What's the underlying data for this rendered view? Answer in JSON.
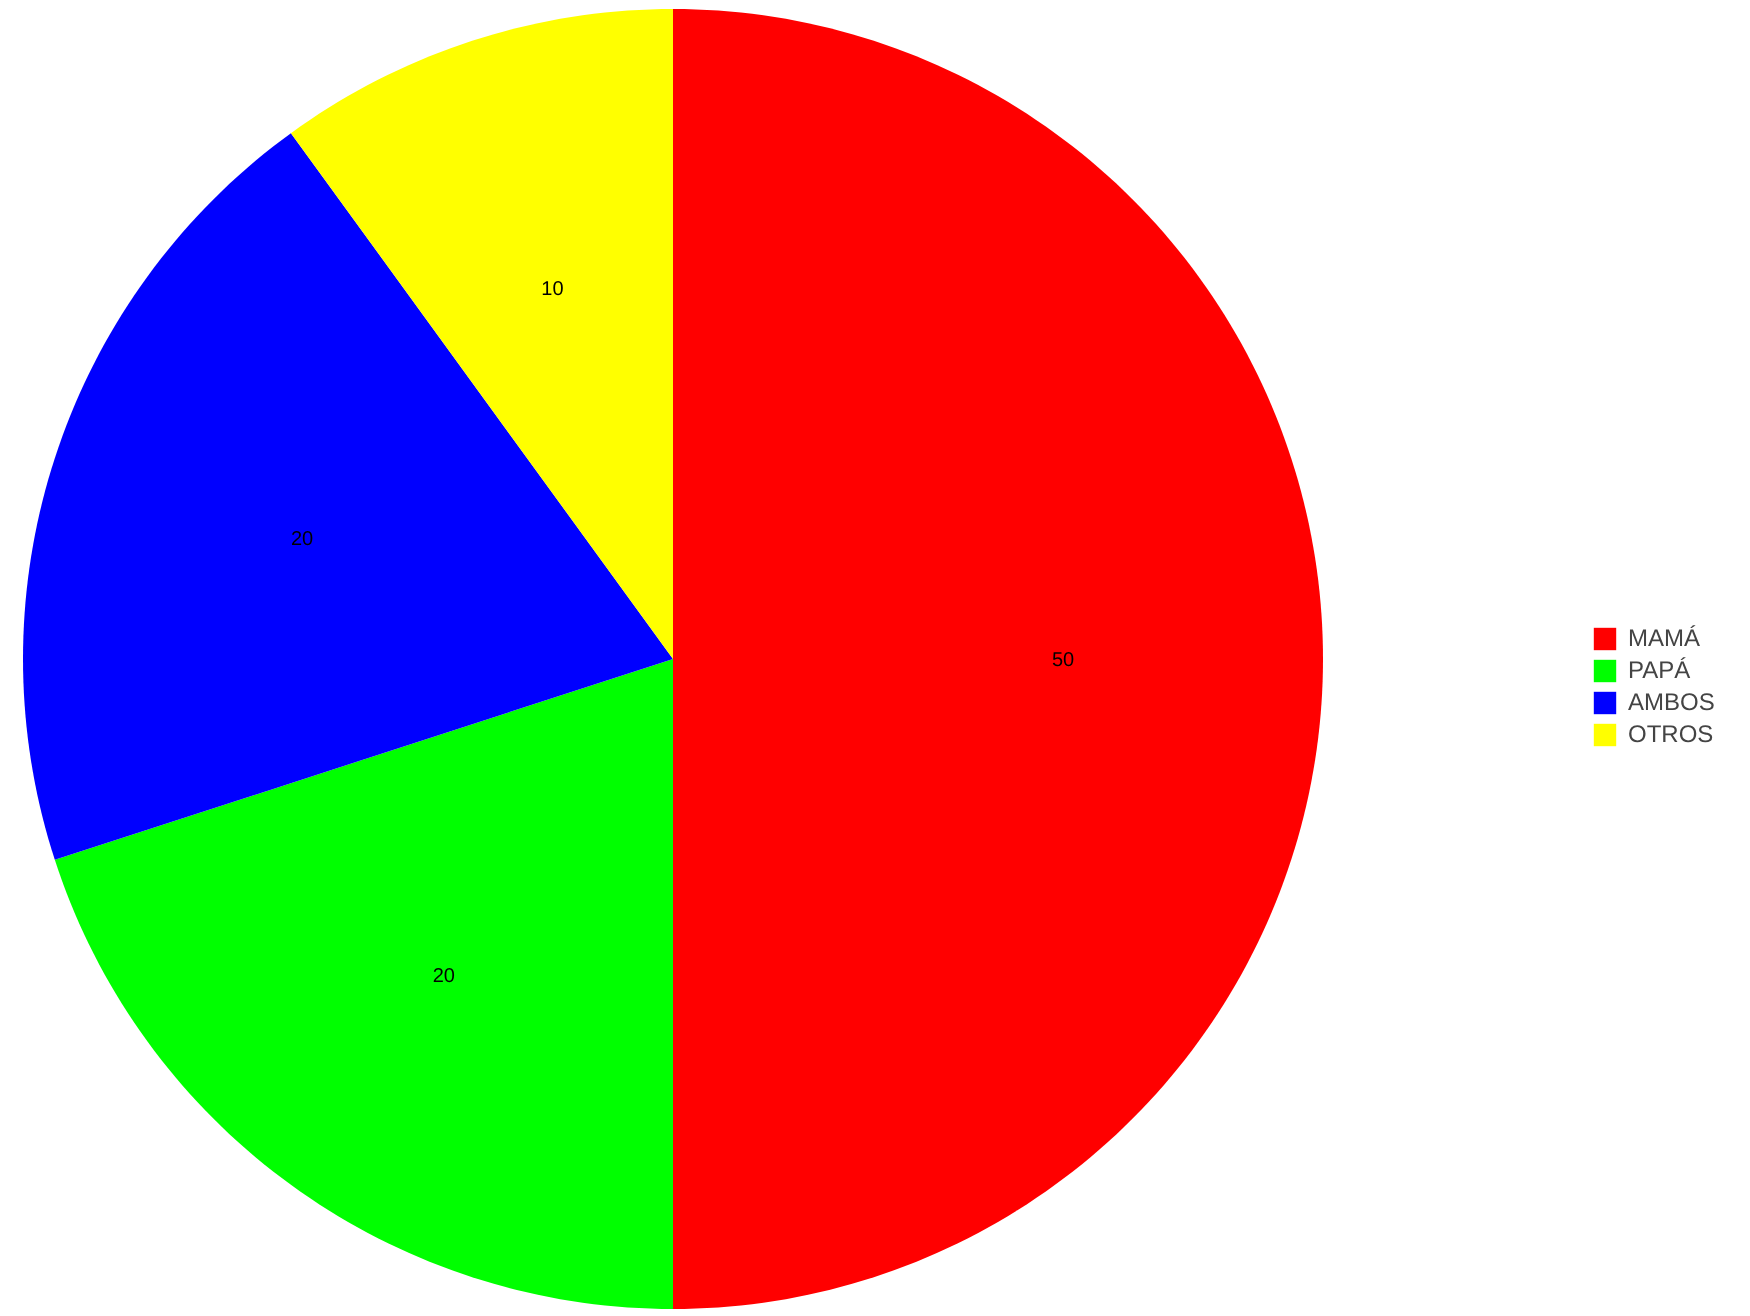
{
  "chart_data": {
    "type": "pie",
    "categories": [
      "MAMÁ",
      "PAPÁ",
      "AMBOS",
      "OTROS"
    ],
    "values": [
      50,
      20,
      20,
      10
    ],
    "colors": [
      "#ff0000",
      "#00ff00",
      "#0000ff",
      "#ffff00"
    ],
    "data_labels": true,
    "legend": "right"
  }
}
